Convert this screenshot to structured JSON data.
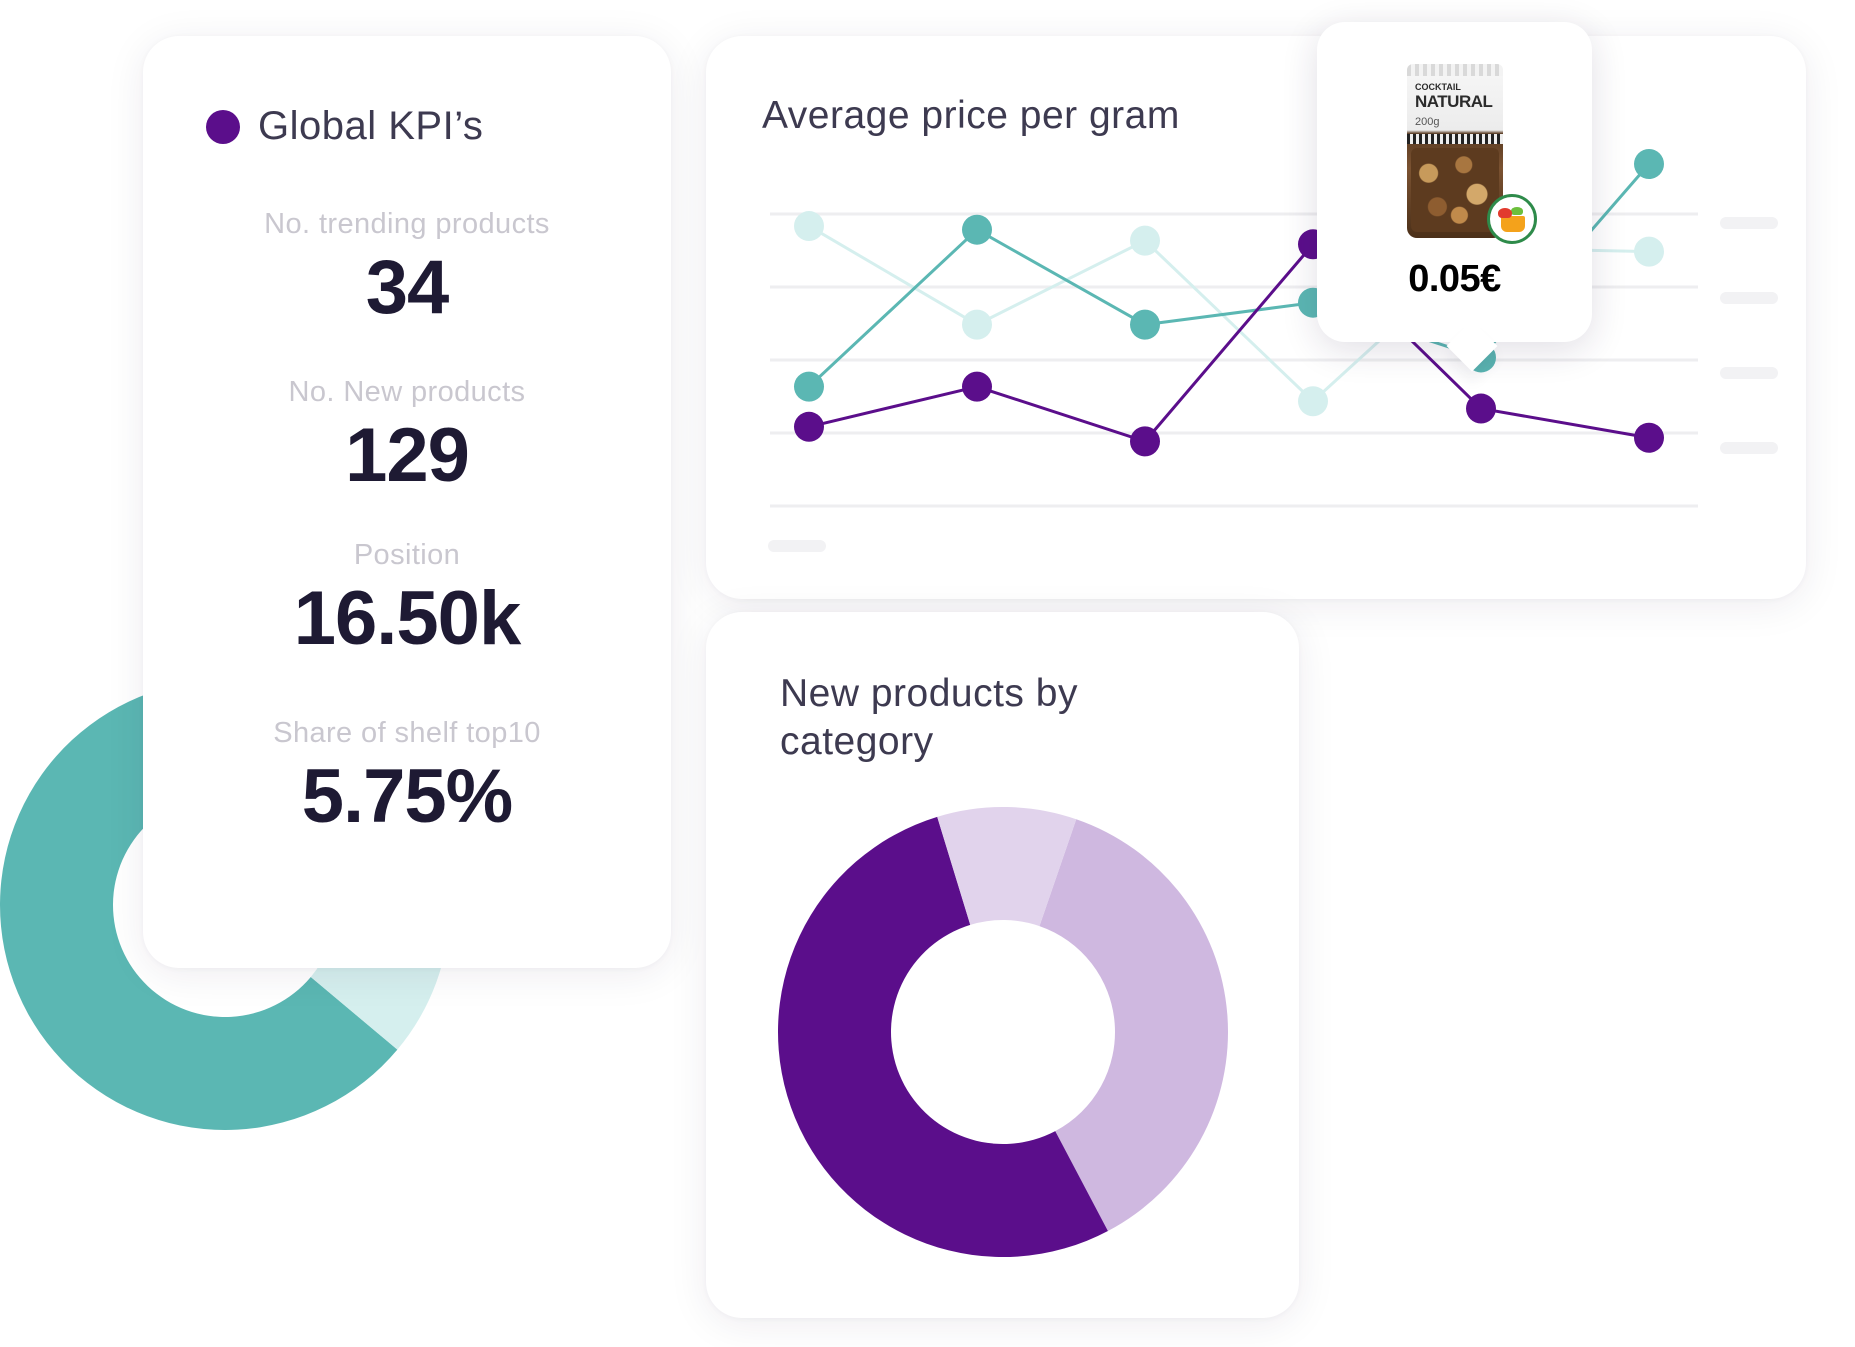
{
  "kpi_card": {
    "title": "Global KPI’s",
    "items": [
      {
        "label": "No. trending products",
        "value": "34"
      },
      {
        "label": "No. New products",
        "value": "129"
      },
      {
        "label": "Position",
        "value": "16.50k"
      },
      {
        "label": "Share of shelf top10",
        "value": "5.75%"
      }
    ]
  },
  "line_card": {
    "title": "Average price per gram"
  },
  "tooltip": {
    "product_brand": "COCKTAIL",
    "product_name": "NATURAL",
    "product_weight": "200g",
    "price": "0.05€",
    "icon": "supermarket-basket-icon"
  },
  "donut_card": {
    "title_line1": "New products by",
    "title_line2": "category"
  },
  "colors": {
    "purple": "#5b0e8b",
    "teal": "#5bb7b3",
    "teal_light": "#d5efee",
    "lilac": "#cfb8e0",
    "lilac_light": "#e1d3ec",
    "grid": "#eeeef0",
    "text_dark": "#1e1a33",
    "text_muted": "#c9c7cf"
  },
  "chart_data": [
    {
      "type": "line",
      "title": "Average price per gram",
      "x": [
        1,
        2,
        3,
        4,
        5,
        6
      ],
      "ylim": [
        0,
        4
      ],
      "grid": true,
      "series": [
        {
          "color": "#5b0e8b",
          "values": [
            0.4,
            0.95,
            0.2,
            2.9,
            0.65,
            0.25
          ]
        },
        {
          "color": "#5bb7b3",
          "values": [
            0.95,
            3.1,
            1.8,
            2.1,
            1.35,
            4.0
          ]
        },
        {
          "color": "#d5efee",
          "values": [
            3.15,
            1.8,
            2.95,
            0.75,
            2.85,
            2.8
          ]
        }
      ]
    },
    {
      "type": "pie",
      "title": "New products by category",
      "donut": true,
      "slices": [
        {
          "color": "#cfb8e0",
          "value": 37
        },
        {
          "color": "#5b0e8b",
          "value": 53
        },
        {
          "color": "#e1d3ec",
          "value": 10
        }
      ]
    },
    {
      "type": "pie",
      "donut": true,
      "slices": [
        {
          "color": "#5bb7b3",
          "value": 78
        },
        {
          "color": "#d5efee",
          "value": 22
        }
      ]
    }
  ]
}
